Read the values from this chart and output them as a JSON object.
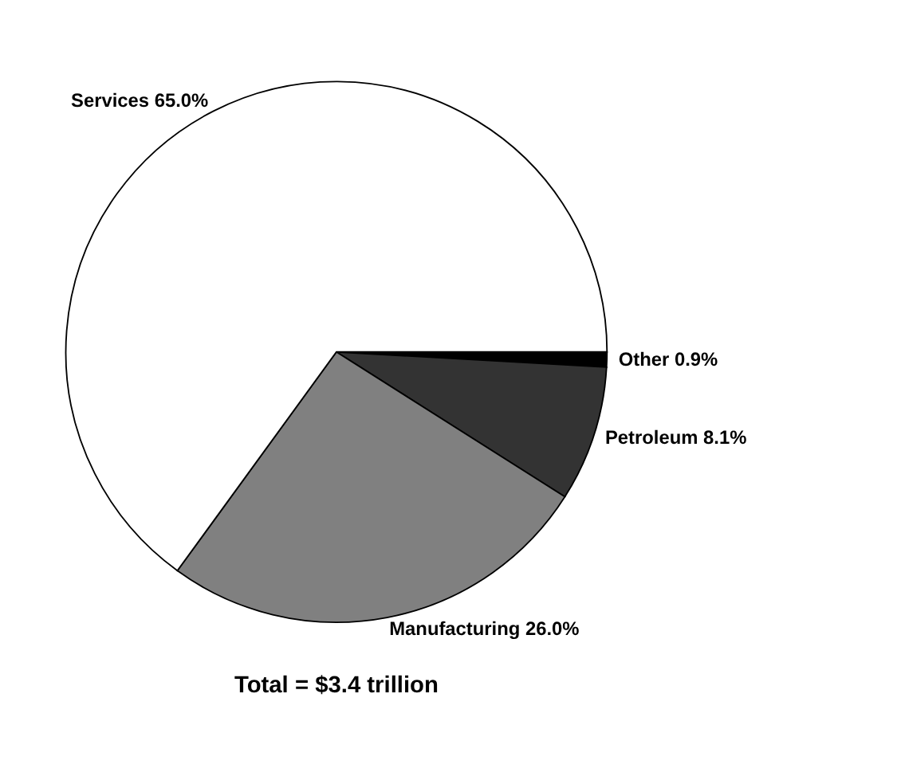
{
  "chart_data": {
    "type": "pie",
    "title": "Total = $3.4 trillion",
    "categories": [
      "Other",
      "Petroleum",
      "Manufacturing",
      "Services"
    ],
    "values": [
      0.9,
      8.1,
      26.0,
      65.0
    ],
    "value_labels": [
      "0.9%",
      "8.1%",
      "26.0%",
      "65.0%"
    ],
    "colors": [
      "#000000",
      "#333333",
      "#808080",
      "#ffffff"
    ],
    "legend": false
  }
}
